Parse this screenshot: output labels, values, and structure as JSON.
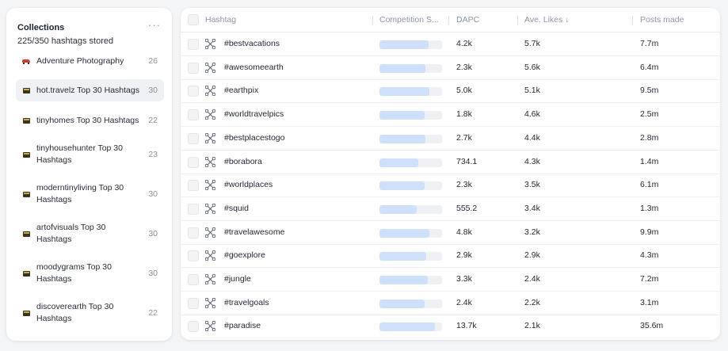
{
  "collections": {
    "title": "Collections",
    "more_icon": "more-horizontal-icon",
    "stored_text": "225/350 hashtags stored",
    "items": [
      {
        "label": "Adventure Photography",
        "count": "26",
        "icon": "car-icon",
        "selected": false
      },
      {
        "label": "hot.travelz Top 30 Hashtags",
        "count": "30",
        "icon": "book-icon",
        "selected": true
      },
      {
        "label": "tinyhomes Top 30 Hashtags",
        "count": "22",
        "icon": "book-icon",
        "selected": false
      },
      {
        "label": "tinyhousehunter Top 30 Hashtags",
        "count": "23",
        "icon": "book-icon",
        "selected": false
      },
      {
        "label": "moderntinyliving Top 30 Hashtags",
        "count": "30",
        "icon": "book-icon",
        "selected": false
      },
      {
        "label": "artofvisuals Top 30 Hashtags",
        "count": "30",
        "icon": "book-icon",
        "selected": false
      },
      {
        "label": "moodygrams Top 30 Hashtags",
        "count": "30",
        "icon": "book-icon",
        "selected": false
      },
      {
        "label": "discoverearth Top 30 Hashtags",
        "count": "22",
        "icon": "book-icon",
        "selected": false
      }
    ]
  },
  "table": {
    "columns": {
      "hashtag": "Hashtag",
      "competition": "Competition S...",
      "dapc": "DAPC",
      "ave_likes": "Ave. Likes ↓",
      "posts_made": "Posts made"
    },
    "row_icon": "hashtag-network-icon",
    "rows": [
      {
        "hashtag": "#bestvacations",
        "competition": 0.78,
        "dapc": "4.2k",
        "ave_likes": "5.7k",
        "posts_made": "7.7m"
      },
      {
        "hashtag": "#awesomeearth",
        "competition": 0.74,
        "dapc": "2.3k",
        "ave_likes": "5.6k",
        "posts_made": "6.4m"
      },
      {
        "hashtag": "#earthpix",
        "competition": 0.8,
        "dapc": "5.0k",
        "ave_likes": "5.1k",
        "posts_made": "9.5m"
      },
      {
        "hashtag": "#worldtravelpics",
        "competition": 0.72,
        "dapc": "1.8k",
        "ave_likes": "4.6k",
        "posts_made": "2.5m"
      },
      {
        "hashtag": "#bestplacestogo",
        "competition": 0.74,
        "dapc": "2.7k",
        "ave_likes": "4.4k",
        "posts_made": "2.8m"
      },
      {
        "hashtag": "#borabora",
        "competition": 0.62,
        "dapc": "734.1",
        "ave_likes": "4.3k",
        "posts_made": "1.4m"
      },
      {
        "hashtag": "#worldplaces",
        "competition": 0.72,
        "dapc": "2.3k",
        "ave_likes": "3.5k",
        "posts_made": "6.1m"
      },
      {
        "hashtag": "#squid",
        "competition": 0.6,
        "dapc": "555.2",
        "ave_likes": "3.4k",
        "posts_made": "1.3m"
      },
      {
        "hashtag": "#travelawesome",
        "competition": 0.8,
        "dapc": "4.8k",
        "ave_likes": "3.2k",
        "posts_made": "9.9m"
      },
      {
        "hashtag": "#goexplore",
        "competition": 0.75,
        "dapc": "2.9k",
        "ave_likes": "2.9k",
        "posts_made": "4.3m"
      },
      {
        "hashtag": "#jungle",
        "competition": 0.77,
        "dapc": "3.3k",
        "ave_likes": "2.4k",
        "posts_made": "7.2m"
      },
      {
        "hashtag": "#travelgoals",
        "competition": 0.72,
        "dapc": "2.4k",
        "ave_likes": "2.2k",
        "posts_made": "3.1m"
      },
      {
        "hashtag": "#paradise",
        "competition": 0.88,
        "dapc": "13.7k",
        "ave_likes": "2.1k",
        "posts_made": "35.6m"
      }
    ]
  },
  "colors": {
    "bar_fill": "#cfe0fb",
    "bar_track": "#eef0f4",
    "header_text": "#8e94a6"
  }
}
